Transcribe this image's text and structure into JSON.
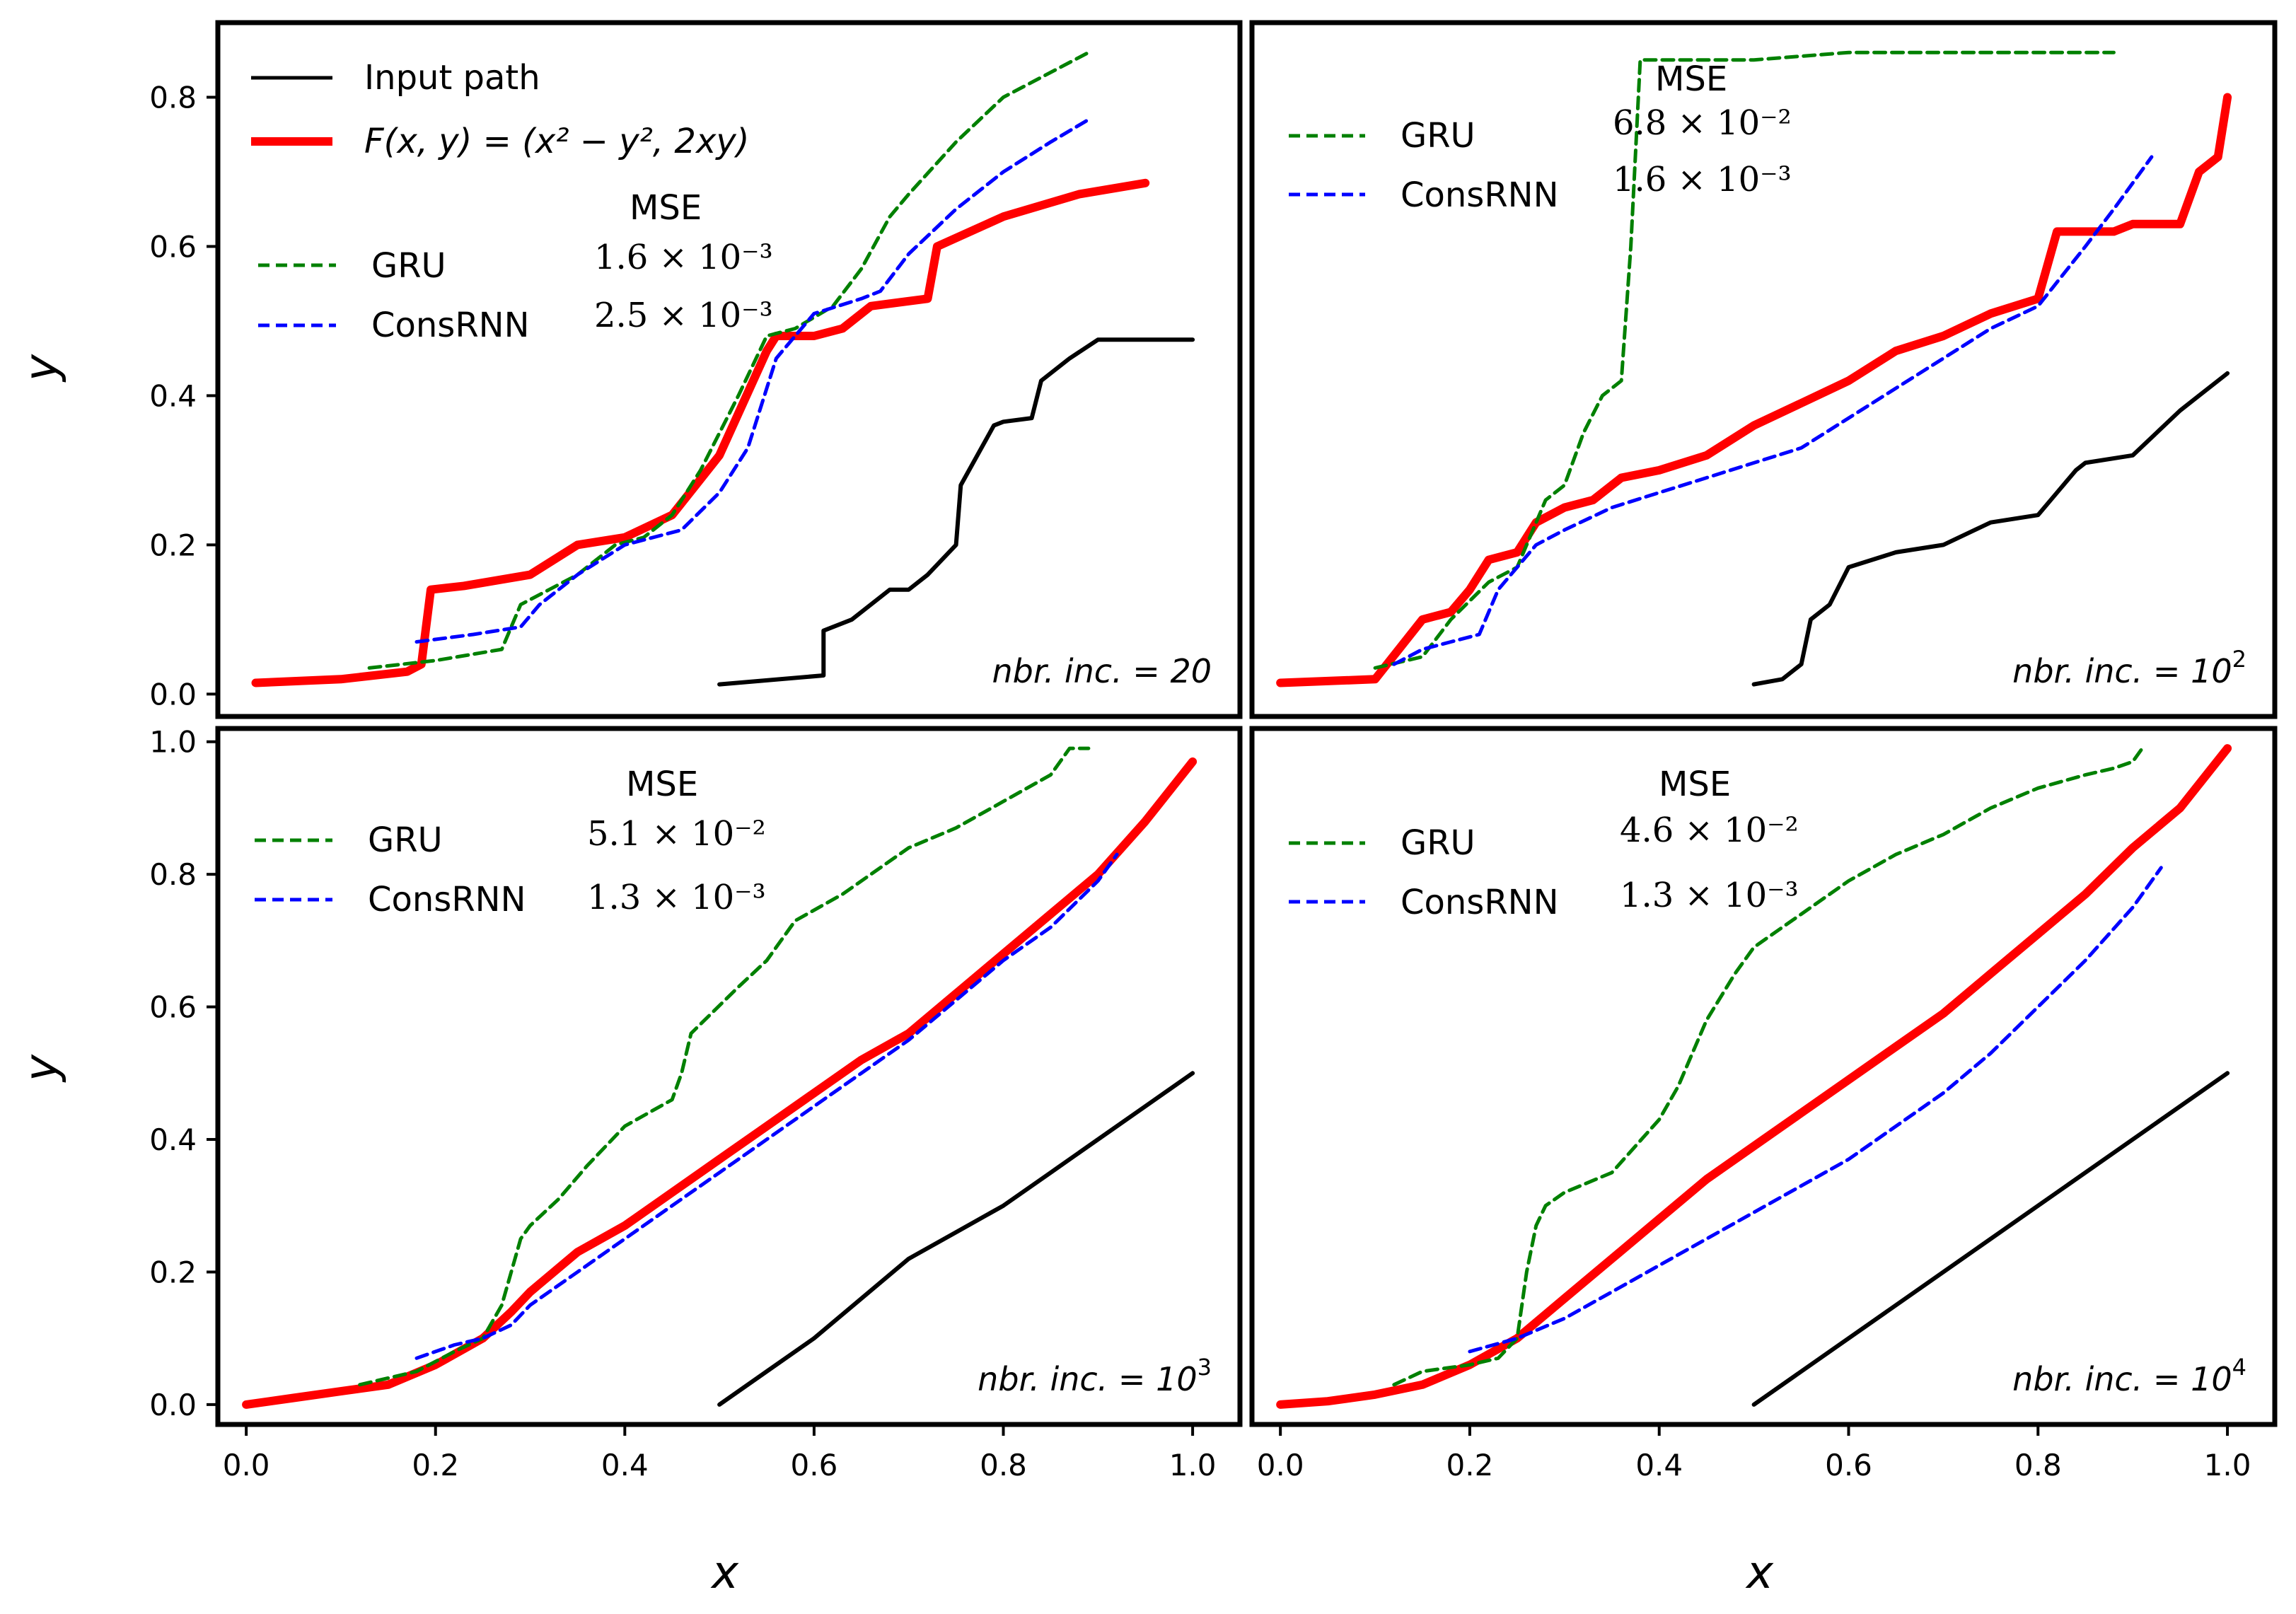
{
  "figure": {
    "xlabel": "x",
    "ylabel": "y",
    "legend": {
      "input_label": "Input path",
      "f_label": "F(x, y) = (x² − y², 2xy)",
      "mse_header": "MSE",
      "gru_label": "GRU",
      "consrnn_label": "ConsRNN"
    },
    "colors": {
      "input": "#000000",
      "f": "#ff0000",
      "gru": "#008000",
      "consrnn": "#0000ff"
    }
  },
  "chart_data": [
    {
      "type": "line",
      "panel": "top-left",
      "annotation": "nbr. inc. = 20",
      "mse": {
        "gru": "1.6 × 10⁻³",
        "consrnn": "2.5 × 10⁻³"
      },
      "xlim": [
        -0.03,
        1.05
      ],
      "ylim": [
        -0.03,
        0.9
      ],
      "xticks": [],
      "yticks": [
        "0.0",
        "0.2",
        "0.4",
        "0.6",
        "0.8"
      ],
      "series": [
        {
          "name": "Input path",
          "x": [
            0.5,
            0.61,
            0.61,
            0.64,
            0.68,
            0.7,
            0.72,
            0.75,
            0.755,
            0.79,
            0.8,
            0.83,
            0.84,
            0.87,
            0.9,
            0.95,
            1.0
          ],
          "y": [
            0.013,
            0.025,
            0.085,
            0.1,
            0.14,
            0.14,
            0.16,
            0.2,
            0.28,
            0.36,
            0.365,
            0.37,
            0.42,
            0.45,
            0.475,
            0.475,
            0.475
          ]
        },
        {
          "name": "F",
          "x": [
            0.01,
            0.1,
            0.17,
            0.185,
            0.195,
            0.23,
            0.3,
            0.35,
            0.4,
            0.45,
            0.5,
            0.55,
            0.56,
            0.6,
            0.63,
            0.66,
            0.72,
            0.73,
            0.8,
            0.88,
            0.95
          ],
          "y": [
            0.015,
            0.02,
            0.03,
            0.04,
            0.14,
            0.145,
            0.16,
            0.2,
            0.21,
            0.24,
            0.32,
            0.46,
            0.48,
            0.48,
            0.49,
            0.52,
            0.53,
            0.6,
            0.64,
            0.67,
            0.685
          ]
        },
        {
          "name": "GRU",
          "x": [
            0.13,
            0.2,
            0.27,
            0.29,
            0.32,
            0.35,
            0.39,
            0.42,
            0.45,
            0.48,
            0.52,
            0.55,
            0.58,
            0.62,
            0.65,
            0.68,
            0.7,
            0.75,
            0.8,
            0.86,
            0.89
          ],
          "y": [
            0.035,
            0.045,
            0.06,
            0.12,
            0.14,
            0.16,
            0.2,
            0.21,
            0.24,
            0.3,
            0.4,
            0.48,
            0.49,
            0.52,
            0.57,
            0.64,
            0.67,
            0.74,
            0.8,
            0.84,
            0.86
          ]
        },
        {
          "name": "ConsRNN",
          "x": [
            0.18,
            0.24,
            0.29,
            0.31,
            0.35,
            0.4,
            0.46,
            0.5,
            0.53,
            0.56,
            0.6,
            0.65,
            0.67,
            0.7,
            0.75,
            0.8,
            0.85,
            0.89
          ],
          "y": [
            0.07,
            0.08,
            0.09,
            0.12,
            0.16,
            0.2,
            0.22,
            0.27,
            0.33,
            0.45,
            0.51,
            0.53,
            0.54,
            0.59,
            0.65,
            0.7,
            0.74,
            0.77
          ]
        }
      ]
    },
    {
      "type": "line",
      "panel": "top-right",
      "annotation": "nbr. inc. = 10²",
      "mse": {
        "gru": "6.8 × 10⁻²",
        "consrnn": "1.6 × 10⁻³"
      },
      "xlim": [
        -0.03,
        1.05
      ],
      "ylim": [
        -0.03,
        0.9
      ],
      "xticks": [],
      "yticks": [],
      "series": [
        {
          "name": "Input path",
          "x": [
            0.5,
            0.53,
            0.55,
            0.56,
            0.58,
            0.6,
            0.65,
            0.7,
            0.75,
            0.8,
            0.82,
            0.84,
            0.85,
            0.9,
            0.95,
            0.97,
            1.0
          ],
          "y": [
            0.013,
            0.02,
            0.04,
            0.1,
            0.12,
            0.17,
            0.19,
            0.2,
            0.23,
            0.24,
            0.27,
            0.3,
            0.31,
            0.32,
            0.38,
            0.4,
            0.43
          ]
        },
        {
          "name": "F",
          "x": [
            0.0,
            0.1,
            0.15,
            0.18,
            0.2,
            0.22,
            0.25,
            0.27,
            0.3,
            0.33,
            0.36,
            0.4,
            0.45,
            0.5,
            0.55,
            0.6,
            0.65,
            0.7,
            0.75,
            0.8,
            0.82,
            0.88,
            0.9,
            0.95,
            0.97,
            0.99,
            1.0
          ],
          "y": [
            0.015,
            0.02,
            0.1,
            0.11,
            0.14,
            0.18,
            0.19,
            0.23,
            0.25,
            0.26,
            0.29,
            0.3,
            0.32,
            0.36,
            0.39,
            0.42,
            0.46,
            0.48,
            0.51,
            0.53,
            0.62,
            0.62,
            0.63,
            0.63,
            0.7,
            0.72,
            0.8
          ]
        },
        {
          "name": "GRU",
          "x": [
            0.1,
            0.15,
            0.18,
            0.22,
            0.25,
            0.28,
            0.3,
            0.32,
            0.34,
            0.36,
            0.37,
            0.38,
            0.4,
            0.45,
            0.5,
            0.6,
            0.7,
            0.8,
            0.88
          ],
          "y": [
            0.035,
            0.05,
            0.1,
            0.15,
            0.17,
            0.26,
            0.28,
            0.35,
            0.4,
            0.42,
            0.6,
            0.85,
            0.85,
            0.85,
            0.85,
            0.86,
            0.86,
            0.86,
            0.86
          ]
        },
        {
          "name": "ConsRNN",
          "x": [
            0.12,
            0.15,
            0.18,
            0.21,
            0.23,
            0.25,
            0.27,
            0.3,
            0.35,
            0.4,
            0.45,
            0.5,
            0.55,
            0.6,
            0.65,
            0.7,
            0.75,
            0.8,
            0.85,
            0.88,
            0.92
          ],
          "y": [
            0.04,
            0.06,
            0.07,
            0.08,
            0.14,
            0.17,
            0.2,
            0.22,
            0.25,
            0.27,
            0.29,
            0.31,
            0.33,
            0.37,
            0.41,
            0.45,
            0.49,
            0.52,
            0.6,
            0.65,
            0.72
          ]
        }
      ]
    },
    {
      "type": "line",
      "panel": "bottom-left",
      "annotation": "nbr. inc. = 10³",
      "mse": {
        "gru": "5.1 × 10⁻²",
        "consrnn": "1.3 × 10⁻³"
      },
      "xlim": [
        -0.03,
        1.05
      ],
      "ylim": [
        -0.03,
        1.02
      ],
      "xticks": [
        "0.0",
        "0.2",
        "0.4",
        "0.6",
        "0.8",
        "1.0"
      ],
      "yticks": [
        "0.0",
        "0.2",
        "0.4",
        "0.6",
        "0.8",
        "1.0"
      ],
      "series": [
        {
          "name": "Input path",
          "x": [
            0.5,
            0.55,
            0.6,
            0.65,
            0.7,
            0.75,
            0.8,
            0.85,
            0.9,
            0.95,
            1.0
          ],
          "y": [
            0.0,
            0.05,
            0.1,
            0.16,
            0.22,
            0.26,
            0.3,
            0.35,
            0.4,
            0.45,
            0.5
          ]
        },
        {
          "name": "F",
          "x": [
            0.0,
            0.05,
            0.1,
            0.15,
            0.2,
            0.25,
            0.28,
            0.3,
            0.35,
            0.4,
            0.45,
            0.5,
            0.55,
            0.6,
            0.65,
            0.7,
            0.75,
            0.8,
            0.85,
            0.9,
            0.95,
            1.0
          ],
          "y": [
            0.0,
            0.01,
            0.02,
            0.03,
            0.06,
            0.1,
            0.14,
            0.17,
            0.23,
            0.27,
            0.32,
            0.37,
            0.42,
            0.47,
            0.52,
            0.56,
            0.62,
            0.68,
            0.74,
            0.8,
            0.88,
            0.97
          ]
        },
        {
          "name": "GRU",
          "x": [
            0.12,
            0.18,
            0.22,
            0.25,
            0.27,
            0.29,
            0.3,
            0.33,
            0.36,
            0.4,
            0.45,
            0.46,
            0.47,
            0.52,
            0.55,
            0.58,
            0.63,
            0.7,
            0.75,
            0.8,
            0.85,
            0.87,
            0.89
          ],
          "y": [
            0.03,
            0.05,
            0.08,
            0.1,
            0.15,
            0.25,
            0.27,
            0.31,
            0.36,
            0.42,
            0.46,
            0.5,
            0.56,
            0.63,
            0.67,
            0.73,
            0.77,
            0.84,
            0.87,
            0.91,
            0.95,
            0.99,
            0.99
          ]
        },
        {
          "name": "ConsRNN",
          "x": [
            0.18,
            0.22,
            0.25,
            0.28,
            0.3,
            0.35,
            0.4,
            0.45,
            0.5,
            0.55,
            0.6,
            0.65,
            0.7,
            0.75,
            0.8,
            0.85,
            0.9,
            0.92
          ],
          "y": [
            0.07,
            0.09,
            0.1,
            0.12,
            0.15,
            0.2,
            0.25,
            0.3,
            0.35,
            0.4,
            0.45,
            0.5,
            0.55,
            0.61,
            0.67,
            0.72,
            0.79,
            0.83
          ]
        }
      ]
    },
    {
      "type": "line",
      "panel": "bottom-right",
      "annotation": "nbr. inc. = 10⁴",
      "mse": {
        "gru": "4.6 × 10⁻²",
        "consrnn": "1.3 × 10⁻³"
      },
      "xlim": [
        -0.03,
        1.05
      ],
      "ylim": [
        -0.03,
        1.02
      ],
      "xticks": [
        "0.0",
        "0.2",
        "0.4",
        "0.6",
        "0.8",
        "1.0"
      ],
      "yticks": [],
      "series": [
        {
          "name": "Input path",
          "x": [
            0.5,
            1.0
          ],
          "y": [
            0.0,
            0.5
          ]
        },
        {
          "name": "F",
          "x": [
            0.0,
            0.05,
            0.1,
            0.15,
            0.2,
            0.25,
            0.3,
            0.35,
            0.4,
            0.45,
            0.5,
            0.55,
            0.6,
            0.65,
            0.7,
            0.75,
            0.8,
            0.85,
            0.9,
            0.95,
            1.0
          ],
          "y": [
            0.0,
            0.005,
            0.015,
            0.03,
            0.06,
            0.1,
            0.16,
            0.22,
            0.28,
            0.34,
            0.39,
            0.44,
            0.49,
            0.54,
            0.59,
            0.65,
            0.71,
            0.77,
            0.84,
            0.9,
            0.99
          ]
        },
        {
          "name": "GRU",
          "x": [
            0.12,
            0.15,
            0.2,
            0.23,
            0.25,
            0.26,
            0.27,
            0.28,
            0.3,
            0.35,
            0.4,
            0.42,
            0.45,
            0.48,
            0.5,
            0.55,
            0.6,
            0.65,
            0.7,
            0.75,
            0.8,
            0.85,
            0.88,
            0.9,
            0.91
          ],
          "y": [
            0.03,
            0.05,
            0.06,
            0.07,
            0.1,
            0.2,
            0.27,
            0.3,
            0.32,
            0.35,
            0.43,
            0.48,
            0.58,
            0.65,
            0.69,
            0.74,
            0.79,
            0.83,
            0.86,
            0.9,
            0.93,
            0.95,
            0.96,
            0.97,
            0.99
          ]
        },
        {
          "name": "ConsRNN",
          "x": [
            0.2,
            0.25,
            0.3,
            0.35,
            0.4,
            0.45,
            0.5,
            0.55,
            0.6,
            0.65,
            0.7,
            0.75,
            0.8,
            0.85,
            0.9,
            0.93
          ],
          "y": [
            0.08,
            0.1,
            0.13,
            0.17,
            0.21,
            0.25,
            0.29,
            0.33,
            0.37,
            0.42,
            0.47,
            0.53,
            0.6,
            0.67,
            0.75,
            0.81
          ]
        }
      ]
    }
  ]
}
